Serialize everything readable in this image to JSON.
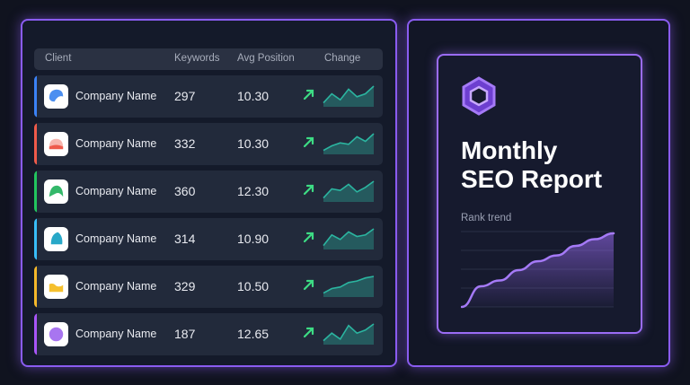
{
  "table": {
    "headers": {
      "client": "Client",
      "keywords": "Keywords",
      "avg_position": "Avg Position",
      "change": "Change"
    },
    "rows": [
      {
        "name": "Company Name",
        "keywords": "297",
        "avg_position": "10.30",
        "accent": "#3b82f6",
        "logo_color": "#4c8ff0",
        "logo_shape": "cap",
        "spark": [
          2,
          8,
          4,
          11,
          6,
          8,
          13
        ]
      },
      {
        "name": "Company Name",
        "keywords": "332",
        "avg_position": "10.30",
        "accent": "#ef5a4a",
        "logo_color": "#ee5a4c",
        "logo_shape": "dome",
        "spark": [
          2,
          5,
          7,
          6,
          11,
          8,
          13
        ]
      },
      {
        "name": "Company Name",
        "keywords": "360",
        "avg_position": "12.30",
        "accent": "#22c55e",
        "logo_color": "#34b86a",
        "logo_shape": "leaf",
        "spark": [
          2,
          8,
          7,
          11,
          6,
          9,
          13
        ]
      },
      {
        "name": "Company Name",
        "keywords": "314",
        "avg_position": "10.90",
        "accent": "#38bdf8",
        "logo_color": "#28a8c8",
        "logo_shape": "drop",
        "spark": [
          2,
          9,
          6,
          11,
          8,
          9,
          13
        ]
      },
      {
        "name": "Company Name",
        "keywords": "329",
        "avg_position": "10.50",
        "accent": "#f5b82a",
        "logo_color": "#f5c02e",
        "logo_shape": "wave",
        "spark": [
          2,
          5,
          6,
          9,
          10,
          12,
          13
        ]
      },
      {
        "name": "Company Name",
        "keywords": "187",
        "avg_position": "12.65",
        "accent": "#a855f7",
        "logo_color": "#a875f0",
        "logo_shape": "circle",
        "spark": [
          2,
          7,
          3,
          12,
          7,
          9,
          13
        ]
      }
    ],
    "change_icon": "trend-up-arrow-icon",
    "spark_color": "#2bb5a0",
    "arrow_color": "#3ddc84"
  },
  "report": {
    "logo_icon": "hexagon-logo-icon",
    "title_line1": "Monthly",
    "title_line2": "SEO Report",
    "chart_label": "Rank trend",
    "accent": "#9b6cf5",
    "trend": [
      0,
      28,
      36,
      50,
      62,
      70,
      83,
      92,
      100
    ]
  }
}
